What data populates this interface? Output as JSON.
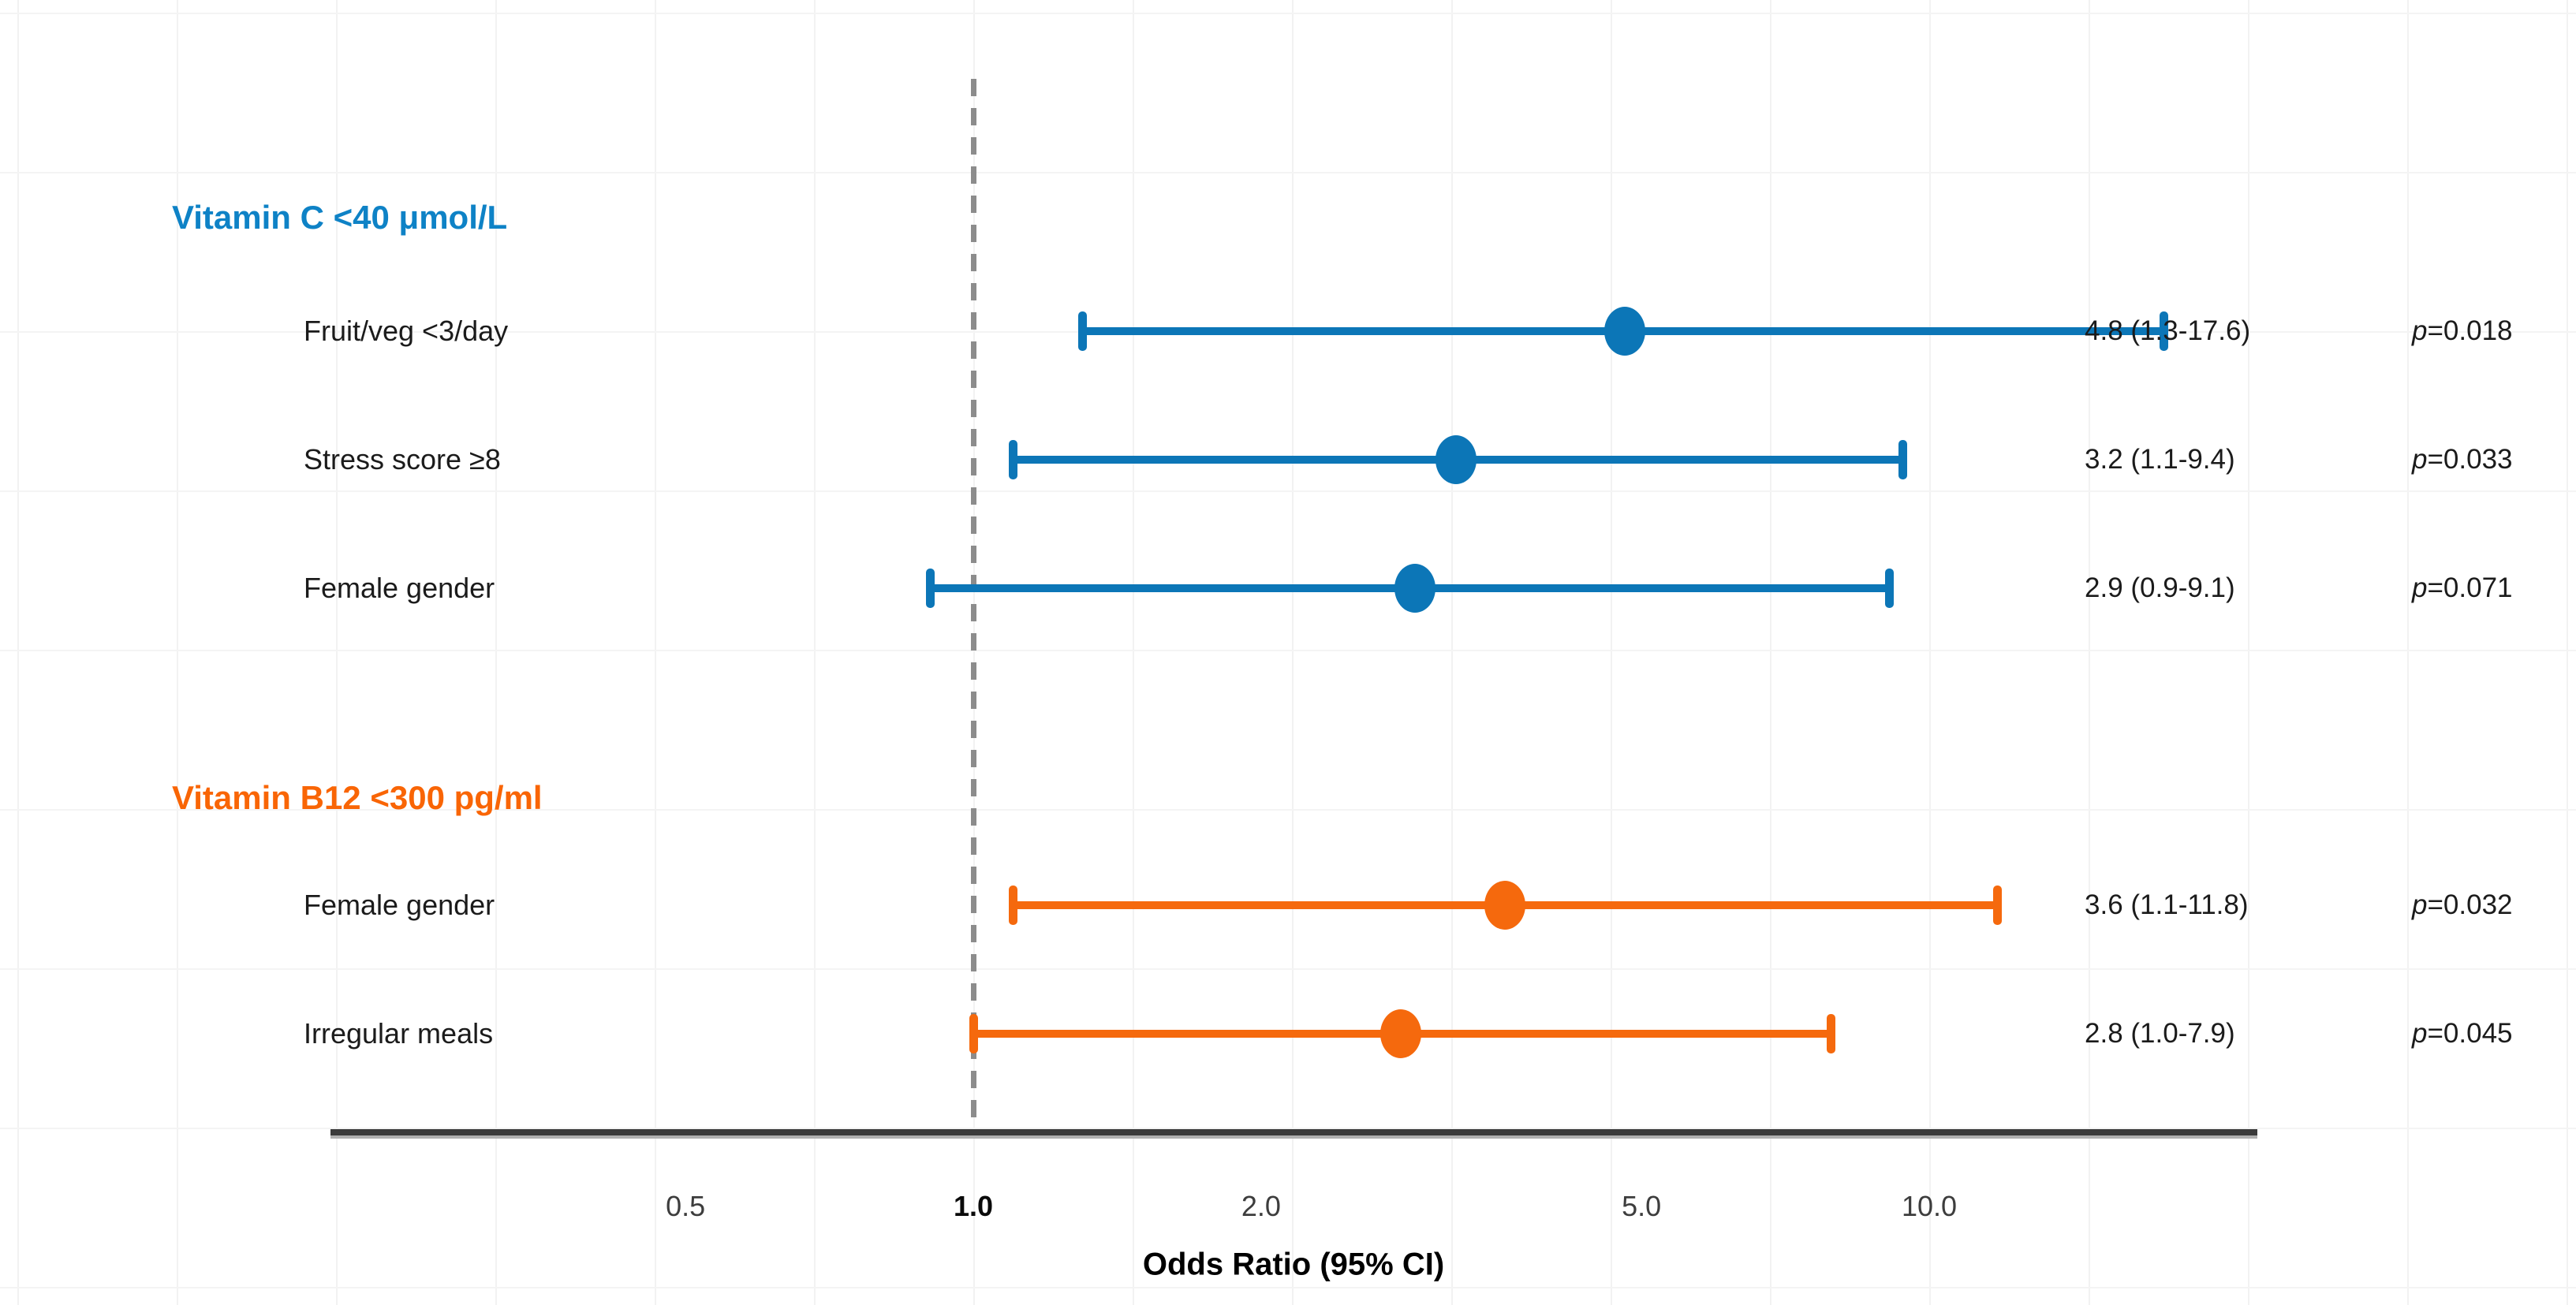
{
  "chart_data": {
    "type": "scatter",
    "variant": "forest-plot",
    "title": "",
    "x_axis": {
      "label": "Odds Ratio (95% CI)",
      "scale": "log",
      "ticks": [
        0.5,
        1.0,
        2.0,
        5.0,
        10.0
      ],
      "tick_labels": [
        "0.5",
        "1.0",
        "2.0",
        "5.0",
        "10.0"
      ],
      "reference_line": 1.0
    },
    "legend": "none",
    "grid": "faint",
    "groups": [
      {
        "label": "Vitamin C <40 μmol/L",
        "header_color": "#0e82c6",
        "series_color": "#0c76b7",
        "rows": [
          {
            "label": "Fruit/veg <3/day",
            "or": 4.8,
            "ci_low": 1.3,
            "ci_high": 17.6,
            "estimate_label": "4.8 (1.3-17.6)",
            "p_label": "p=0.018"
          },
          {
            "label": "Stress score ≥8",
            "or": 3.2,
            "ci_low": 1.1,
            "ci_high": 9.4,
            "estimate_label": "3.2 (1.1-9.4)",
            "p_label": "p=0.033"
          },
          {
            "label": "Female gender",
            "or": 2.9,
            "ci_low": 0.9,
            "ci_high": 9.1,
            "estimate_label": "2.9 (0.9-9.1)",
            "p_label": "p=0.071"
          }
        ]
      },
      {
        "label": "Vitamin B12 <300 pg/ml",
        "header_color": "#f96505",
        "series_color": "#f5690d",
        "rows": [
          {
            "label": "Female gender",
            "or": 3.6,
            "ci_low": 1.1,
            "ci_high": 11.8,
            "estimate_label": "3.6 (1.1-11.8)",
            "p_label": "p=0.032"
          },
          {
            "label": "Irregular meals",
            "or": 2.8,
            "ci_low": 1.0,
            "ci_high": 7.9,
            "estimate_label": "2.8 (1.0-7.9)",
            "p_label": "p=0.045"
          }
        ]
      }
    ]
  }
}
